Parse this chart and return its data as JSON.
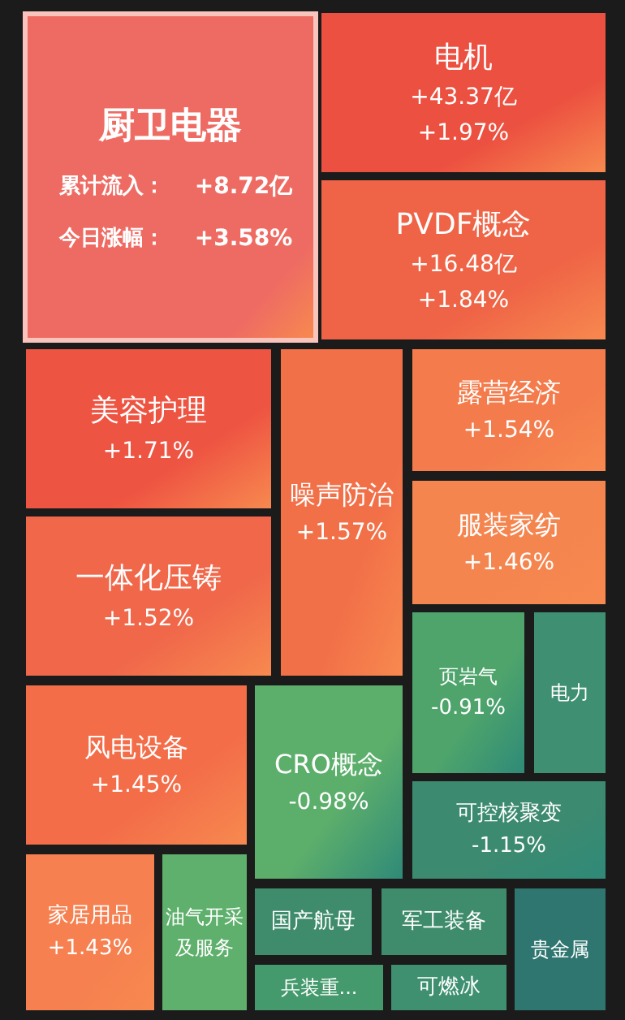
{
  "chart_data": {
    "type": "other",
    "categories": [
      "厨卫电器",
      "电机",
      "PVDF概念",
      "美容护理",
      "一体化压铸",
      "噪声防治",
      "露营经济",
      "服装家纺",
      "页岩气",
      "电力",
      "风电设备",
      "CRO概念",
      "可控核聚变",
      "家居用品",
      "油气开采及服务",
      "国产航母",
      "军工装备",
      "兵装重...",
      "可燃冰",
      "贵金属"
    ],
    "value_labels": [
      "+3.58%",
      "+1.97%",
      "+1.84%",
      "+1.71%",
      "+1.52%",
      "+1.57%",
      "+1.54%",
      "+1.46%",
      "-0.91%",
      null,
      "+1.45%",
      "-0.98%",
      "-1.15%",
      "+1.43%",
      null,
      null,
      null,
      null,
      null,
      null
    ],
    "values": [
      3.58,
      1.97,
      1.84,
      1.71,
      1.52,
      1.57,
      1.54,
      1.46,
      -0.91,
      null,
      1.45,
      -0.98,
      -1.15,
      1.43,
      null,
      null,
      null,
      null,
      null,
      null
    ],
    "colors": [
      "#ee6b63",
      "#ec5040",
      "#ef6446",
      "#ee5442",
      "#f0674a",
      "#f27048",
      "#f47c4c",
      "#f5854f",
      "#4ea46b",
      "#3f8f72",
      "#f36d49",
      "#5cae6b",
      "#3c8a70",
      "#f68050",
      "#5fb06c",
      "#3f8c6c",
      "#3f8c6c",
      "#449a6c",
      "#3e9070",
      "#2f7670"
    ],
    "annotations": [
      {
        "text": "+43.37亿",
        "x": "电机"
      },
      {
        "text": "+16.48亿",
        "x": "PVDF概念"
      },
      {
        "text": "累计流入：",
        "x": "厨卫电器"
      },
      {
        "text": "+8.72亿",
        "x": "厨卫电器"
      },
      {
        "text": "今日涨幅：",
        "x": "厨卫电器"
      }
    ]
  }
}
